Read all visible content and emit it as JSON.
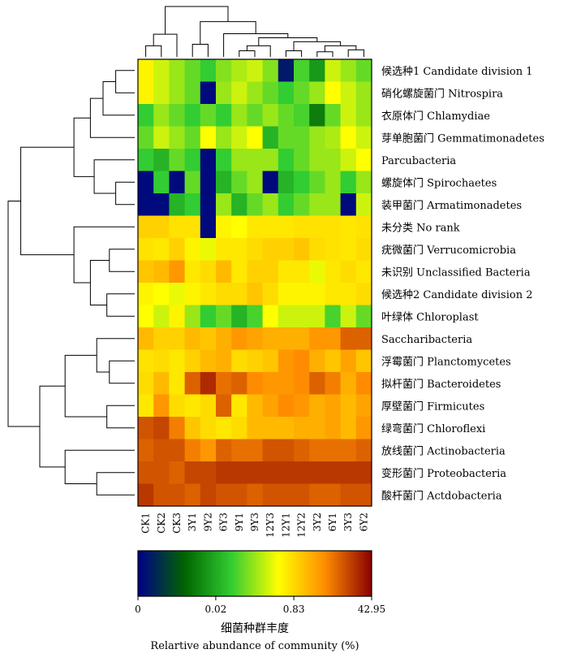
{
  "chart_data": {
    "type": "heatmap",
    "title": "",
    "columns": [
      "CK1",
      "CK2",
      "CK3",
      "3Y1",
      "9Y2",
      "6Y3",
      "9Y1",
      "9Y3",
      "12Y3",
      "12Y1",
      "12Y2",
      "3Y2",
      "6Y1",
      "3Y3",
      "6Y2"
    ],
    "rows": [
      "候选种1 Candidate division 1",
      "硝化螺旋菌门 Nitrospira",
      "衣原体门 Chlamydiae",
      "芽单胞菌门 Gemmatimonadetes",
      "Parcubacteria",
      "螺旋体门 Spirochaetes",
      "装甲菌门 Armatimonadetes",
      "未分类 No rank",
      "疣微菌门 Verrucomicrobia",
      "未识别 Unclassified Bacteria",
      "候选种2 Candidate division 2",
      "叶绿体 Chloroplast",
      "Saccharibacteria",
      "浮霉菌门 Planctomycetes",
      "拟杆菌门 Bacteroidetes",
      "厚壁菌门 Firmicutes",
      "绿弯菌门 Chloroflexi",
      "放线菌门 Actinobacteria",
      "变形菌门 Proteobacteria",
      "酸杆菌门 Actdobacteria"
    ],
    "color_levels": [
      [
        0.62,
        0.55,
        0.5,
        0.45,
        0.4,
        0.48,
        0.52,
        0.55,
        0.48,
        0.05,
        0.42,
        0.3,
        0.55,
        0.5,
        0.45
      ],
      [
        0.62,
        0.55,
        0.5,
        0.45,
        0.02,
        0.5,
        0.55,
        0.5,
        0.45,
        0.4,
        0.45,
        0.5,
        0.6,
        0.55,
        0.5
      ],
      [
        0.4,
        0.5,
        0.45,
        0.4,
        0.45,
        0.4,
        0.5,
        0.45,
        0.5,
        0.45,
        0.42,
        0.25,
        0.45,
        0.55,
        0.5
      ],
      [
        0.45,
        0.55,
        0.5,
        0.45,
        0.6,
        0.5,
        0.55,
        0.6,
        0.35,
        0.45,
        0.45,
        0.5,
        0.52,
        0.6,
        0.55
      ],
      [
        0.4,
        0.35,
        0.45,
        0.4,
        0.02,
        0.4,
        0.5,
        0.5,
        0.5,
        0.4,
        0.45,
        0.5,
        0.5,
        0.55,
        0.6
      ],
      [
        0.02,
        0.4,
        0.02,
        0.45,
        0.02,
        0.35,
        0.45,
        0.5,
        0.02,
        0.35,
        0.4,
        0.45,
        0.5,
        0.4,
        0.5
      ],
      [
        0.02,
        0.02,
        0.35,
        0.4,
        0.02,
        0.5,
        0.35,
        0.45,
        0.5,
        0.4,
        0.45,
        0.5,
        0.5,
        0.02,
        0.55
      ],
      [
        0.68,
        0.68,
        0.65,
        0.65,
        0.02,
        0.62,
        0.6,
        0.64,
        0.64,
        0.64,
        0.65,
        0.65,
        0.65,
        0.64,
        0.65
      ],
      [
        0.65,
        0.64,
        0.68,
        0.62,
        0.58,
        0.64,
        0.64,
        0.66,
        0.68,
        0.68,
        0.7,
        0.66,
        0.65,
        0.64,
        0.66
      ],
      [
        0.7,
        0.72,
        0.78,
        0.64,
        0.66,
        0.72,
        0.64,
        0.68,
        0.68,
        0.64,
        0.64,
        0.58,
        0.64,
        0.66,
        0.64
      ],
      [
        0.62,
        0.6,
        0.58,
        0.62,
        0.64,
        0.66,
        0.66,
        0.7,
        0.66,
        0.62,
        0.62,
        0.62,
        0.64,
        0.64,
        0.66
      ],
      [
        0.6,
        0.55,
        0.62,
        0.5,
        0.4,
        0.45,
        0.35,
        0.42,
        0.6,
        0.55,
        0.55,
        0.55,
        0.42,
        0.55,
        0.45
      ],
      [
        0.72,
        0.68,
        0.68,
        0.72,
        0.7,
        0.74,
        0.78,
        0.76,
        0.74,
        0.74,
        0.74,
        0.78,
        0.78,
        0.86,
        0.86
      ],
      [
        0.65,
        0.66,
        0.64,
        0.68,
        0.72,
        0.74,
        0.66,
        0.68,
        0.7,
        0.78,
        0.8,
        0.74,
        0.7,
        0.76,
        0.7
      ],
      [
        0.66,
        0.72,
        0.64,
        0.86,
        0.94,
        0.84,
        0.86,
        0.8,
        0.78,
        0.78,
        0.8,
        0.86,
        0.82,
        0.74,
        0.8
      ],
      [
        0.64,
        0.78,
        0.66,
        0.64,
        0.66,
        0.86,
        0.64,
        0.72,
        0.76,
        0.8,
        0.78,
        0.74,
        0.76,
        0.72,
        0.76
      ],
      [
        0.88,
        0.9,
        0.82,
        0.7,
        0.66,
        0.64,
        0.66,
        0.72,
        0.72,
        0.72,
        0.74,
        0.74,
        0.76,
        0.72,
        0.78
      ],
      [
        0.86,
        0.88,
        0.88,
        0.82,
        0.78,
        0.86,
        0.84,
        0.84,
        0.88,
        0.88,
        0.86,
        0.84,
        0.84,
        0.84,
        0.86
      ],
      [
        0.88,
        0.88,
        0.86,
        0.9,
        0.9,
        0.92,
        0.92,
        0.92,
        0.92,
        0.92,
        0.92,
        0.92,
        0.92,
        0.92,
        0.92
      ],
      [
        0.92,
        0.88,
        0.88,
        0.86,
        0.9,
        0.88,
        0.88,
        0.86,
        0.88,
        0.88,
        0.88,
        0.86,
        0.86,
        0.88,
        0.88
      ]
    ],
    "colorbar": {
      "stops": [
        "#00008b",
        "#006400",
        "#32cd32",
        "#ffff00",
        "#ff8c00",
        "#8b0000"
      ],
      "ticks": [
        "0",
        "0.02",
        "0.83",
        "42.95"
      ],
      "tick_positions": [
        0,
        0.333,
        0.667,
        1
      ]
    },
    "colorbar_title_zh": "细菌种群丰度",
    "colorbar_title_en": "Relartive abundance of community (%)",
    "row_dendrogram": [
      [
        0,
        1,
        "n0"
      ],
      [
        "n0",
        2,
        "n1"
      ],
      [
        "n1",
        3,
        "n2"
      ],
      [
        5,
        6,
        "n3"
      ],
      [
        4,
        "n3",
        "n4"
      ],
      [
        "n2",
        "n4",
        "n5"
      ],
      [
        8,
        9,
        "n6"
      ],
      [
        10,
        11,
        "n7"
      ],
      [
        "n6",
        "n7",
        "n8"
      ],
      [
        7,
        "n8",
        "n9"
      ],
      [
        "n5",
        "n9",
        "n10"
      ],
      [
        13,
        14,
        "n11"
      ],
      [
        12,
        "n11",
        "n12"
      ],
      [
        15,
        16,
        "n13"
      ],
      [
        "n12",
        "n13",
        "n14"
      ],
      [
        18,
        19,
        "n15"
      ],
      [
        17,
        "n15",
        "n16"
      ],
      [
        "n14",
        "n16",
        "n17"
      ],
      [
        "n10",
        "n17",
        "n18"
      ]
    ],
    "row_heights": {
      "n0": 0.15,
      "n1": 0.25,
      "n2": 0.35,
      "n3": 0.15,
      "n4": 0.32,
      "n5": 0.48,
      "n6": 0.2,
      "n7": 0.22,
      "n8": 0.35,
      "n9": 0.48,
      "n10": 0.9,
      "n11": 0.2,
      "n12": 0.3,
      "n13": 0.22,
      "n14": 0.55,
      "n15": 0.3,
      "n16": 0.55,
      "n17": 0.75,
      "n18": 1.0
    },
    "col_dendrogram": [
      [
        0,
        1,
        "c0"
      ],
      [
        "c0",
        2,
        "c1"
      ],
      [
        3,
        4,
        "c2"
      ],
      [
        6,
        7,
        "c3"
      ],
      [
        "c3",
        8,
        "c4"
      ],
      [
        9,
        10,
        "c5"
      ],
      [
        11,
        12,
        "c6"
      ],
      [
        13,
        14,
        "c7"
      ],
      [
        "c6",
        "c7",
        "c8"
      ],
      [
        "c5",
        "c8",
        "c9"
      ],
      [
        "c4",
        "c9",
        "c10"
      ],
      [
        5,
        "c10",
        "c11"
      ],
      [
        "c2",
        "c11",
        "c12"
      ],
      [
        "c1",
        "c12",
        "c13"
      ]
    ],
    "col_heights": {
      "c0": 0.22,
      "c1": 0.45,
      "c2": 0.25,
      "c3": 0.12,
      "c4": 0.22,
      "c5": 0.12,
      "c6": 0.1,
      "c7": 0.14,
      "c8": 0.22,
      "c9": 0.3,
      "c10": 0.38,
      "c11": 0.46,
      "c12": 0.7,
      "c13": 1.0
    }
  }
}
